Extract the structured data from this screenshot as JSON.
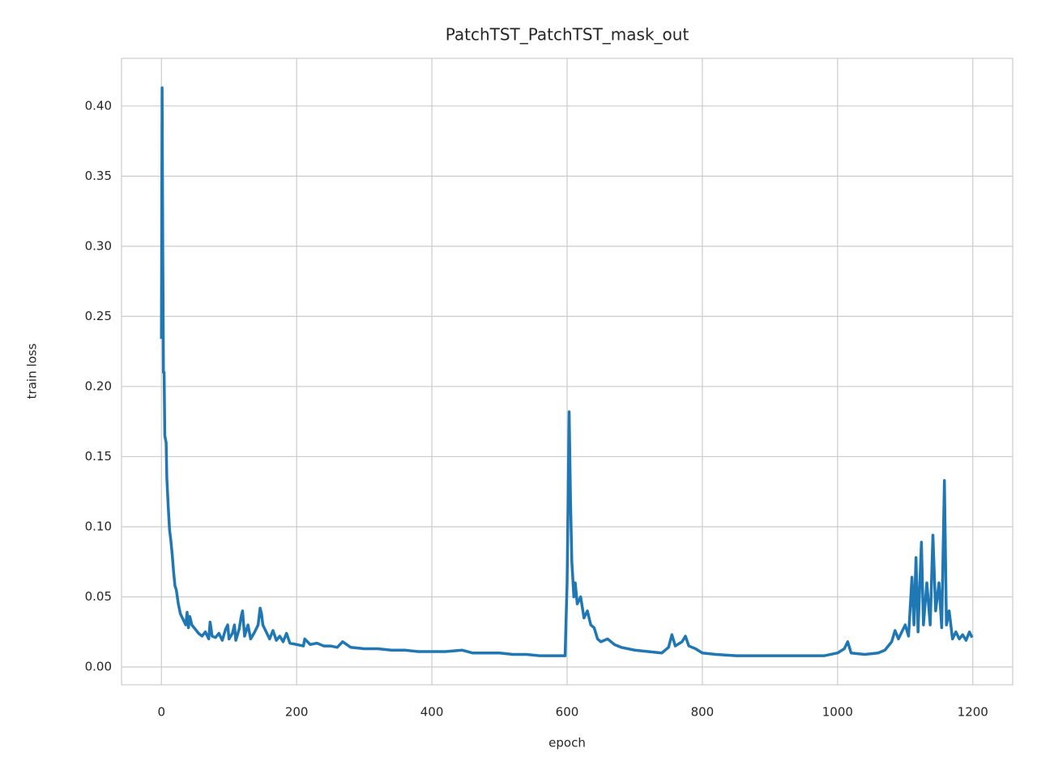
{
  "chart_data": {
    "type": "line",
    "title": "PatchTST_PatchTST_mask_out",
    "xlabel": "epoch",
    "ylabel": "train loss",
    "x": [
      0,
      1,
      2,
      3,
      4,
      5,
      7,
      8,
      10,
      12,
      14,
      16,
      18,
      20,
      22,
      25,
      28,
      32,
      36,
      38,
      40,
      42,
      45,
      50,
      55,
      60,
      65,
      70,
      72,
      75,
      80,
      85,
      90,
      95,
      98,
      100,
      105,
      108,
      110,
      115,
      118,
      120,
      123,
      128,
      132,
      138,
      143,
      146,
      148,
      150,
      155,
      160,
      165,
      170,
      175,
      180,
      185,
      190,
      200,
      210,
      212,
      220,
      230,
      240,
      250,
      260,
      268,
      280,
      300,
      320,
      340,
      360,
      380,
      400,
      420,
      445,
      460,
      480,
      500,
      520,
      540,
      560,
      580,
      597,
      600,
      603,
      605,
      607,
      610,
      612,
      615,
      620,
      625,
      630,
      635,
      640,
      645,
      650,
      660,
      670,
      680,
      700,
      720,
      740,
      750,
      755,
      760,
      770,
      775,
      780,
      790,
      800,
      820,
      850,
      900,
      950,
      980,
      1000,
      1010,
      1015,
      1020,
      1040,
      1060,
      1070,
      1080,
      1085,
      1090,
      1095,
      1100,
      1105,
      1110,
      1113,
      1116,
      1119,
      1124,
      1127,
      1132,
      1137,
      1141,
      1145,
      1150,
      1154,
      1158,
      1161,
      1165,
      1170,
      1175,
      1180,
      1185,
      1190,
      1195,
      1199
    ],
    "series": [
      {
        "name": "train loss",
        "color": "#1f77b4",
        "values": [
          0.234,
          0.413,
          0.3,
          0.21,
          0.21,
          0.165,
          0.16,
          0.135,
          0.115,
          0.098,
          0.09,
          0.08,
          0.068,
          0.058,
          0.055,
          0.045,
          0.038,
          0.034,
          0.03,
          0.039,
          0.028,
          0.036,
          0.03,
          0.027,
          0.024,
          0.022,
          0.025,
          0.02,
          0.032,
          0.022,
          0.021,
          0.024,
          0.019,
          0.027,
          0.03,
          0.02,
          0.024,
          0.03,
          0.019,
          0.027,
          0.036,
          0.04,
          0.022,
          0.03,
          0.02,
          0.025,
          0.03,
          0.042,
          0.038,
          0.03,
          0.025,
          0.02,
          0.026,
          0.019,
          0.022,
          0.018,
          0.024,
          0.017,
          0.016,
          0.015,
          0.02,
          0.016,
          0.017,
          0.015,
          0.015,
          0.014,
          0.018,
          0.014,
          0.013,
          0.013,
          0.012,
          0.012,
          0.011,
          0.011,
          0.011,
          0.012,
          0.01,
          0.01,
          0.01,
          0.009,
          0.009,
          0.008,
          0.008,
          0.008,
          0.06,
          0.182,
          0.12,
          0.075,
          0.05,
          0.06,
          0.045,
          0.05,
          0.035,
          0.04,
          0.03,
          0.028,
          0.02,
          0.018,
          0.02,
          0.016,
          0.014,
          0.012,
          0.011,
          0.01,
          0.014,
          0.023,
          0.015,
          0.018,
          0.022,
          0.015,
          0.013,
          0.01,
          0.009,
          0.008,
          0.008,
          0.008,
          0.008,
          0.01,
          0.013,
          0.018,
          0.01,
          0.009,
          0.01,
          0.012,
          0.018,
          0.026,
          0.02,
          0.025,
          0.03,
          0.022,
          0.064,
          0.03,
          0.078,
          0.025,
          0.089,
          0.03,
          0.06,
          0.03,
          0.094,
          0.04,
          0.06,
          0.028,
          0.133,
          0.03,
          0.04,
          0.02,
          0.025,
          0.02,
          0.023,
          0.019,
          0.025,
          0.021
        ]
      }
    ],
    "xlim": [
      -59,
      1259
    ],
    "ylim": [
      -0.0127,
      0.434
    ],
    "xticks": [
      0,
      200,
      400,
      600,
      800,
      1000,
      1200
    ],
    "yticks": [
      {
        "value": 0,
        "label": "0.00"
      },
      {
        "value": 0.05,
        "label": "0.05"
      },
      {
        "value": 0.1,
        "label": "0.10"
      },
      {
        "value": 0.15,
        "label": "0.15"
      },
      {
        "value": 0.2,
        "label": "0.20"
      },
      {
        "value": 0.25,
        "label": "0.25"
      },
      {
        "value": 0.3,
        "label": "0.30"
      },
      {
        "value": 0.35,
        "label": "0.35"
      },
      {
        "value": 0.4,
        "label": "0.40"
      }
    ],
    "grid": true
  }
}
